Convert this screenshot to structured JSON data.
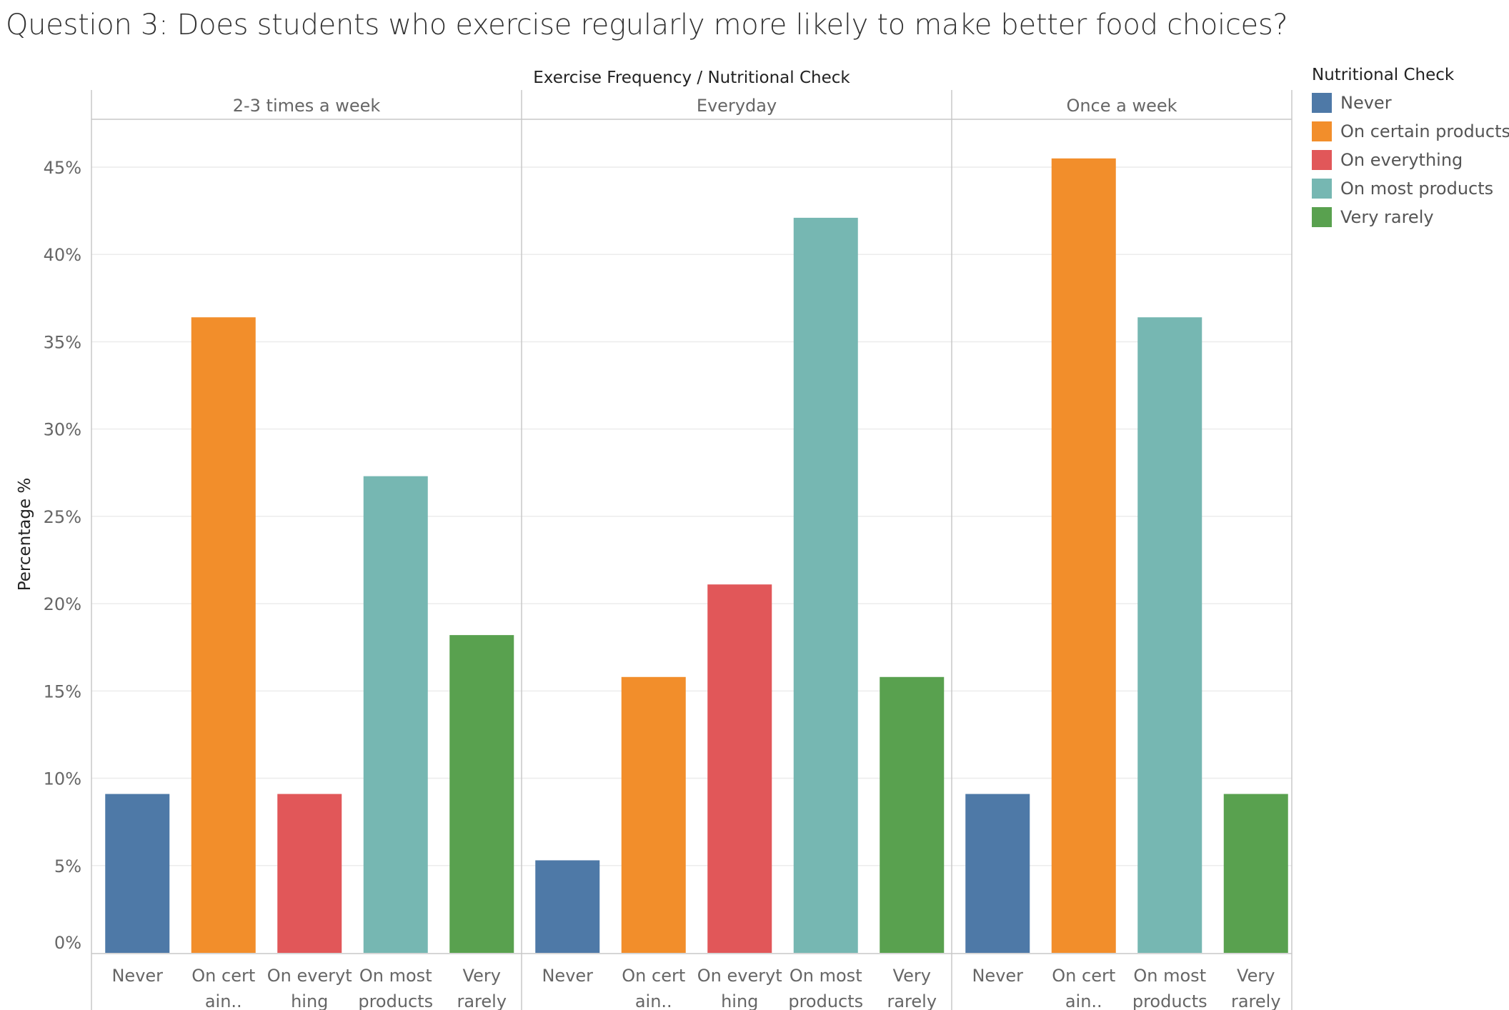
{
  "chart_data": {
    "type": "bar",
    "title": "Question 3: Does students who exercise regularly more likely to make better food choices?",
    "column_header": "Exercise Frequency / Nutritional Check",
    "ylabel": "Percentage %",
    "ylim": [
      0,
      45.5
    ],
    "yticks": [
      0,
      5,
      10,
      15,
      20,
      25,
      30,
      35,
      40,
      45
    ],
    "ytick_labels": [
      "0%",
      "5%",
      "10%",
      "15%",
      "20%",
      "25%",
      "30%",
      "35%",
      "40%",
      "45%"
    ],
    "legend": {
      "title": "Nutritional Check",
      "position": "right",
      "items": [
        {
          "name": "Never",
          "color": "#4e79a7"
        },
        {
          "name": "On certain products",
          "color": "#f28e2b"
        },
        {
          "name": "On everything",
          "color": "#e15759"
        },
        {
          "name": "On most products",
          "color": "#76b7b2"
        },
        {
          "name": "Very rarely",
          "color": "#59a14f"
        }
      ]
    },
    "panels": [
      {
        "name": "2-3 times a week",
        "bars": [
          {
            "category": "Never",
            "label": [
              "Never"
            ],
            "value": 9.1
          },
          {
            "category": "On certain products",
            "label": [
              "On cert",
              "ain.."
            ],
            "value": 36.4
          },
          {
            "category": "On everything",
            "label": [
              "On everyt",
              "hing"
            ],
            "value": 9.1
          },
          {
            "category": "On most products",
            "label": [
              "On most",
              "products"
            ],
            "value": 27.3
          },
          {
            "category": "Very rarely",
            "label": [
              "Very",
              "rarely"
            ],
            "value": 18.2
          }
        ]
      },
      {
        "name": "Everyday",
        "bars": [
          {
            "category": "Never",
            "label": [
              "Never"
            ],
            "value": 5.3
          },
          {
            "category": "On certain products",
            "label": [
              "On cert",
              "ain.."
            ],
            "value": 15.8
          },
          {
            "category": "On everything",
            "label": [
              "On everyt",
              "hing"
            ],
            "value": 21.1
          },
          {
            "category": "On most products",
            "label": [
              "On most",
              "products"
            ],
            "value": 42.1
          },
          {
            "category": "Very rarely",
            "label": [
              "Very",
              "rarely"
            ],
            "value": 15.8
          }
        ]
      },
      {
        "name": "Once a week",
        "bars": [
          {
            "category": "Never",
            "label": [
              "Never"
            ],
            "value": 9.1
          },
          {
            "category": "On certain products",
            "label": [
              "On cert",
              "ain.."
            ],
            "value": 45.5
          },
          {
            "category": "On most products",
            "label": [
              "On most",
              "products"
            ],
            "value": 36.4
          },
          {
            "category": "Very rarely",
            "label": [
              "Very",
              "rarely"
            ],
            "value": 9.1
          }
        ]
      }
    ]
  }
}
